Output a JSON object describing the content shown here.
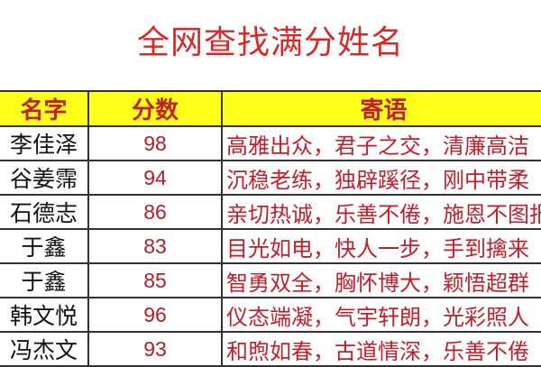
{
  "title": "全网查找满分姓名",
  "table": {
    "headers": [
      "名字",
      "分数",
      "寄语"
    ],
    "rows": [
      {
        "name": "李佳泽",
        "score": "98",
        "message": "高雅出众，君子之交，清廉高洁"
      },
      {
        "name": "谷姜霈",
        "score": "94",
        "message": "沉稳老练，独辟蹊径，刚中带柔"
      },
      {
        "name": "石德志",
        "score": "86",
        "message": "亲切热诚，乐善不倦，施恩不图报"
      },
      {
        "name": "于鑫",
        "score": "83",
        "message": "目光如电，快人一步，手到擒来"
      },
      {
        "name": "于鑫",
        "score": "85",
        "message": "智勇双全，胸怀博大，颖悟超群"
      },
      {
        "name": "韩文悦",
        "score": "96",
        "message": "仪态端凝，气宇轩朗，光彩照人"
      },
      {
        "name": "冯杰文",
        "score": "93",
        "message": "和煦如春，古道情深，乐善不倦"
      }
    ]
  },
  "colors": {
    "title": "#d62a2a",
    "header_bg": "#ffff1a",
    "accent_text": "#c0202a"
  }
}
